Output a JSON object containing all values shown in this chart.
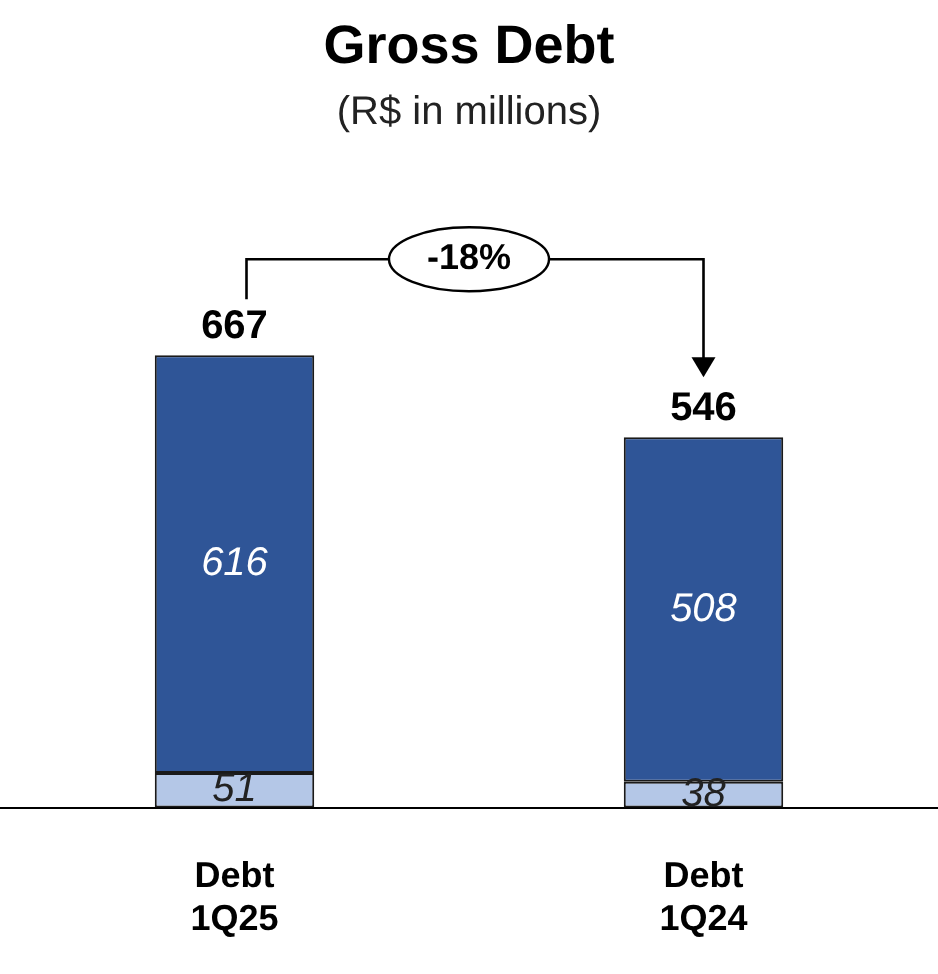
{
  "chart_data": {
    "type": "bar",
    "title": "Gross Debt",
    "subtitle": "(R$ in millions)",
    "categories": [
      "Debt 1Q25",
      "Debt 1Q24"
    ],
    "stacked": true,
    "data_labels": true,
    "series": [
      {
        "color": "#b4c7e7",
        "values": [
          51,
          38
        ]
      },
      {
        "color": "#2f5597",
        "values": [
          616,
          508
        ]
      }
    ],
    "totals": [
      "667",
      "546"
    ],
    "annotations": [
      "-18%"
    ]
  }
}
